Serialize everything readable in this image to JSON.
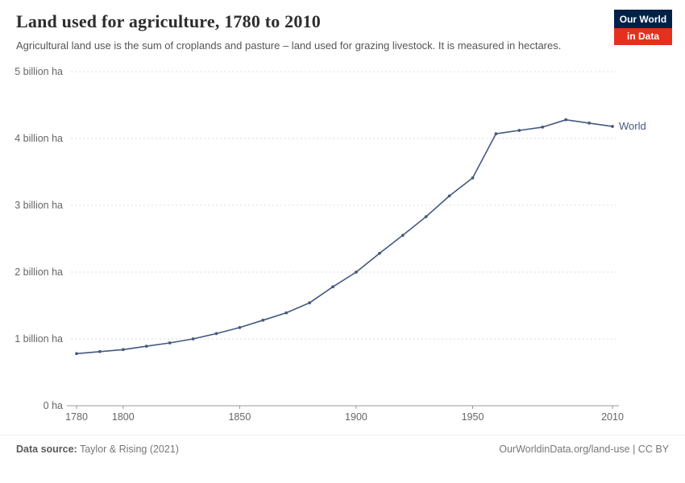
{
  "header": {
    "title": "Land used for agriculture, 1780 to 2010",
    "subtitle": "Agricultural land use is the sum of croplands and pasture – land used for grazing livestock. It is measured in hectares.",
    "logo": {
      "line1": "Our World",
      "line2": "in Data"
    }
  },
  "chart_data": {
    "type": "line",
    "title": "Land used for agriculture, 1780 to 2010",
    "xlabel": "",
    "ylabel": "",
    "unit": "billion ha",
    "xlim": [
      1780,
      2010
    ],
    "ylim": [
      0,
      5
    ],
    "grid": "horizontal-dashed",
    "legend_position": "end-of-line",
    "x_ticks": [
      1780,
      1800,
      1850,
      1900,
      1950,
      2010
    ],
    "y_ticks": [
      {
        "value": 0,
        "label": "0 ha"
      },
      {
        "value": 1,
        "label": "1 billion ha"
      },
      {
        "value": 2,
        "label": "2 billion ha"
      },
      {
        "value": 3,
        "label": "3 billion ha"
      },
      {
        "value": 4,
        "label": "4 billion ha"
      },
      {
        "value": 5,
        "label": "5 billion ha"
      }
    ],
    "series": [
      {
        "name": "World",
        "color": "#44597E",
        "x": [
          1780,
          1790,
          1800,
          1810,
          1820,
          1830,
          1840,
          1850,
          1860,
          1870,
          1880,
          1890,
          1900,
          1910,
          1920,
          1930,
          1940,
          1950,
          1960,
          1970,
          1980,
          1990,
          2000,
          2010
        ],
        "values": [
          0.78,
          0.81,
          0.84,
          0.89,
          0.94,
          1.0,
          1.08,
          1.17,
          1.28,
          1.39,
          1.54,
          1.78,
          2.0,
          2.28,
          2.55,
          2.83,
          3.14,
          3.41,
          4.07,
          4.12,
          4.17,
          4.28,
          4.23,
          4.18
        ]
      }
    ]
  },
  "footer": {
    "source_label": "Data source:",
    "source_value": " Taylor & Rising (2021)",
    "credit": "OurWorldinData.org/land-use | CC BY"
  },
  "colors": {
    "navy": "#002147",
    "red": "#E5301F",
    "line": "#44597E",
    "grid": "#dddddd",
    "axis": "#999999",
    "ticktext": "#666666"
  }
}
